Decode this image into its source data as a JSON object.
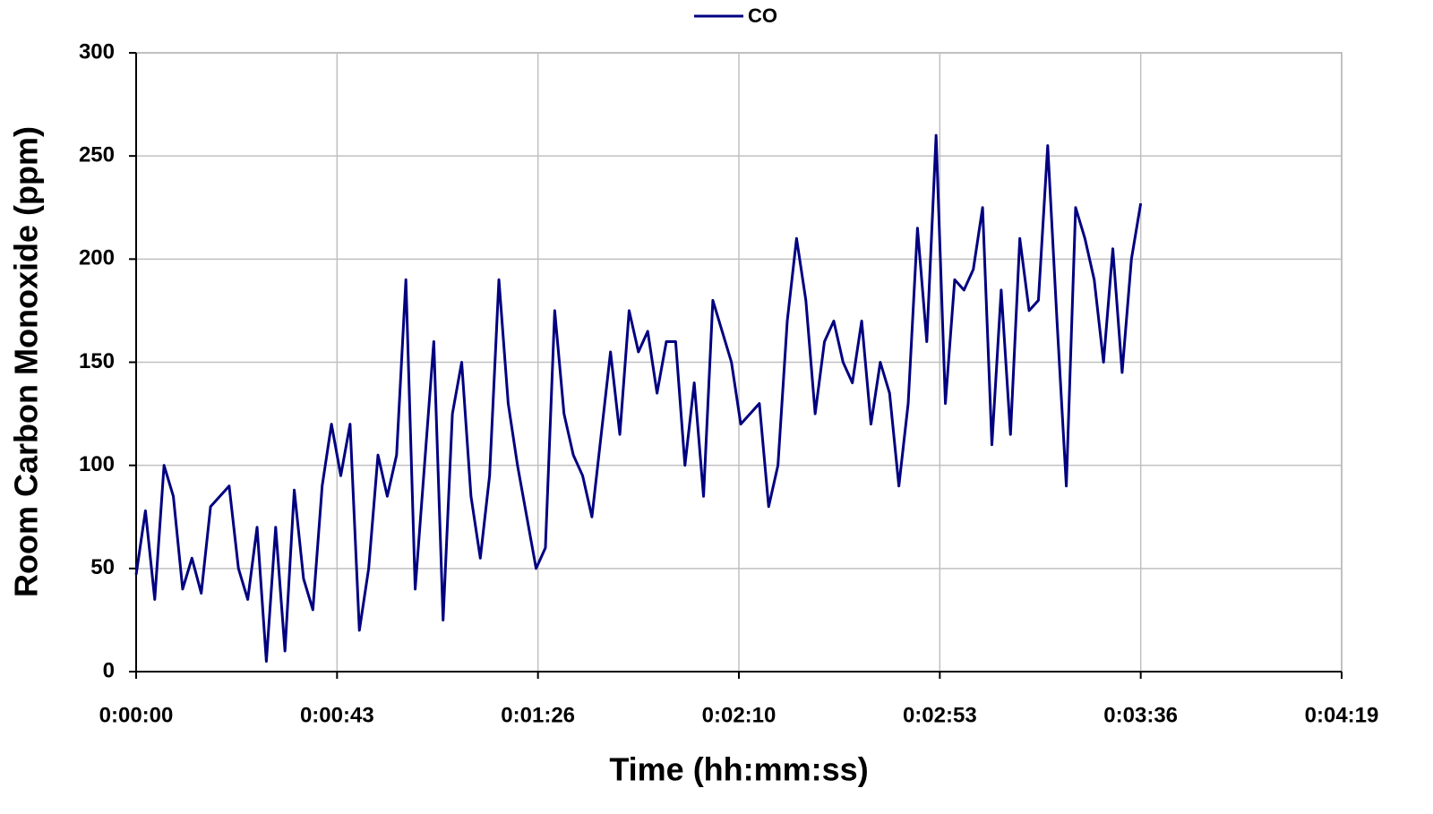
{
  "chart_data": {
    "type": "line",
    "xlabel": "Time (hh:mm:ss)",
    "ylabel": "Room Carbon Monoxide (ppm)",
    "x": [
      0,
      2,
      4,
      6,
      8,
      10,
      12,
      14,
      16,
      18,
      20,
      22,
      24,
      26,
      28,
      30,
      32,
      34,
      36,
      38,
      40,
      42,
      44,
      46,
      48,
      50,
      52,
      54,
      56,
      58,
      60,
      62,
      64,
      66,
      68,
      70,
      72,
      74,
      76,
      78,
      80,
      82,
      84,
      86,
      88,
      90,
      92,
      94,
      96,
      98,
      100,
      102,
      104,
      106,
      108,
      110,
      112,
      114,
      116,
      118,
      120,
      122,
      124,
      126,
      128,
      130,
      132,
      134,
      136,
      138,
      140,
      142,
      144,
      146,
      148,
      150,
      152,
      154,
      156,
      158,
      160,
      162,
      164,
      166,
      168,
      170,
      172,
      174,
      176,
      178,
      180,
      182,
      184,
      186,
      188,
      190,
      192,
      194,
      196,
      198,
      200,
      202,
      204,
      206,
      208,
      210,
      212,
      214,
      216
    ],
    "series": [
      {
        "name": "CO",
        "color": "#000080",
        "values": [
          47,
          78,
          35,
          100,
          85,
          40,
          55,
          38,
          80,
          85,
          90,
          50,
          35,
          70,
          5,
          70,
          10,
          88,
          45,
          30,
          90,
          120,
          95,
          120,
          20,
          50,
          105,
          85,
          105,
          190,
          40,
          100,
          160,
          25,
          125,
          150,
          85,
          55,
          95,
          190,
          130,
          100,
          75,
          50,
          60,
          175,
          125,
          105,
          95,
          75,
          115,
          155,
          115,
          175,
          155,
          165,
          135,
          160,
          160,
          100,
          140,
          85,
          180,
          165,
          150,
          120,
          125,
          130,
          80,
          100,
          170,
          210,
          180,
          125,
          160,
          170,
          150,
          140,
          170,
          120,
          150,
          135,
          90,
          130,
          215,
          160,
          260,
          130,
          190,
          185,
          195,
          225,
          110,
          185,
          115,
          210,
          175,
          180,
          255,
          170,
          90,
          225,
          210,
          190,
          150,
          205,
          145,
          200,
          227
        ]
      }
    ],
    "xlim": [
      0,
      259.2
    ],
    "ylim": [
      0,
      300
    ],
    "xticks": [
      {
        "value": 0,
        "label": "0:00:00"
      },
      {
        "value": 43.2,
        "label": "0:00:43"
      },
      {
        "value": 86.4,
        "label": "0:01:26"
      },
      {
        "value": 129.6,
        "label": "0:02:10"
      },
      {
        "value": 172.8,
        "label": "0:02:53"
      },
      {
        "value": 216,
        "label": "0:03:36"
      },
      {
        "value": 259.2,
        "label": "0:04:19"
      }
    ],
    "yticks": [
      0,
      50,
      100,
      150,
      200,
      250,
      300
    ],
    "grid": true,
    "legend": "top"
  }
}
